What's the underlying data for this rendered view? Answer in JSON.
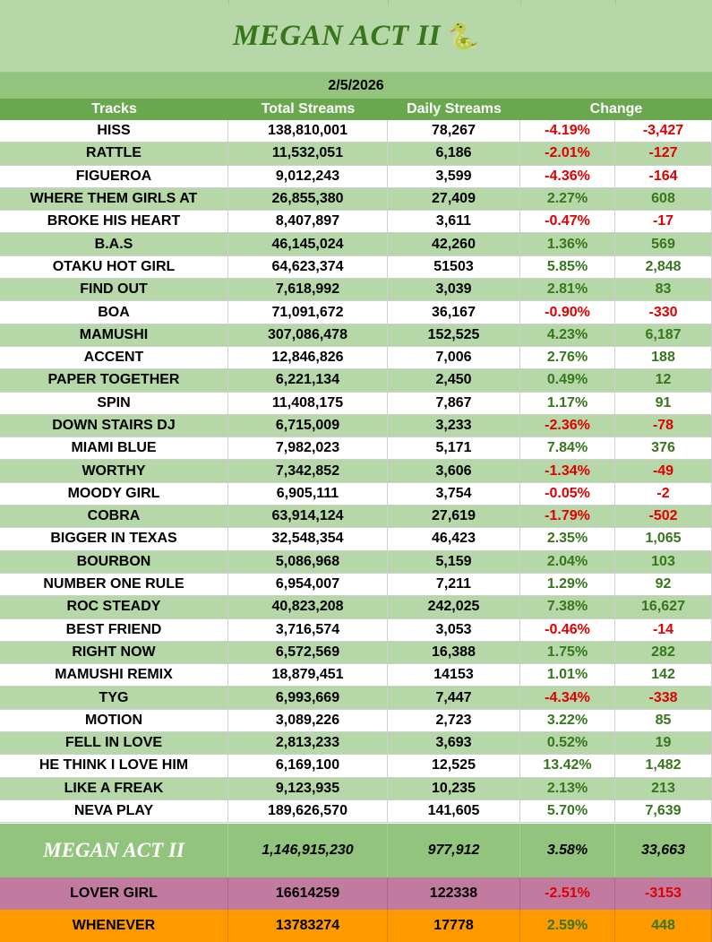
{
  "title": "MEGAN ACT II",
  "title_emoji": "🐍",
  "date": "2/5/2026",
  "headers": {
    "tracks": "Tracks",
    "total": "Total Streams",
    "daily": "Daily Streams",
    "change": "Change"
  },
  "tracks": [
    {
      "name": "HISS",
      "total": "138,810,001",
      "daily": "78,267",
      "pct": "-4.19%",
      "diff": "-3,427"
    },
    {
      "name": "RATTLE",
      "total": "11,532,051",
      "daily": "6,186",
      "pct": "-2.01%",
      "diff": "-127"
    },
    {
      "name": "FIGUEROA",
      "total": "9,012,243",
      "daily": "3,599",
      "pct": "-4.36%",
      "diff": "-164"
    },
    {
      "name": "WHERE THEM GIRLS AT",
      "total": "26,855,380",
      "daily": "27,409",
      "pct": "2.27%",
      "diff": "608"
    },
    {
      "name": "BROKE HIS HEART",
      "total": "8,407,897",
      "daily": "3,611",
      "pct": "-0.47%",
      "diff": "-17"
    },
    {
      "name": "B.A.S",
      "total": "46,145,024",
      "daily": "42,260",
      "pct": "1.36%",
      "diff": "569"
    },
    {
      "name": "OTAKU HOT GIRL",
      "total": "64,623,374",
      "daily": "51503",
      "pct": "5.85%",
      "diff": "2,848"
    },
    {
      "name": "FIND OUT",
      "total": "7,618,992",
      "daily": "3,039",
      "pct": "2.81%",
      "diff": "83"
    },
    {
      "name": "BOA",
      "total": "71,091,672",
      "daily": "36,167",
      "pct": "-0.90%",
      "diff": "-330"
    },
    {
      "name": "MAMUSHI",
      "total": "307,086,478",
      "daily": "152,525",
      "pct": "4.23%",
      "diff": "6,187"
    },
    {
      "name": "ACCENT",
      "total": "12,846,826",
      "daily": "7,006",
      "pct": "2.76%",
      "diff": "188"
    },
    {
      "name": "PAPER TOGETHER",
      "total": "6,221,134",
      "daily": "2,450",
      "pct": "0.49%",
      "diff": "12"
    },
    {
      "name": "SPIN",
      "total": "11,408,175",
      "daily": "7,867",
      "pct": "1.17%",
      "diff": "91"
    },
    {
      "name": "DOWN STAIRS DJ",
      "total": "6,715,009",
      "daily": "3,233",
      "pct": "-2.36%",
      "diff": "-78"
    },
    {
      "name": "MIAMI BLUE",
      "total": "7,982,023",
      "daily": "5,171",
      "pct": "7.84%",
      "diff": "376"
    },
    {
      "name": "WORTHY",
      "total": "7,342,852",
      "daily": "3,606",
      "pct": "-1.34%",
      "diff": "-49"
    },
    {
      "name": "MOODY GIRL",
      "total": "6,905,111",
      "daily": "3,754",
      "pct": "-0.05%",
      "diff": "-2"
    },
    {
      "name": "COBRA",
      "total": "63,914,124",
      "daily": "27,619",
      "pct": "-1.79%",
      "diff": "-502"
    },
    {
      "name": "BIGGER IN TEXAS",
      "total": "32,548,354",
      "daily": "46,423",
      "pct": "2.35%",
      "diff": "1,065"
    },
    {
      "name": "BOURBON",
      "total": "5,086,968",
      "daily": "5,159",
      "pct": "2.04%",
      "diff": "103"
    },
    {
      "name": "NUMBER ONE RULE",
      "total": "6,954,007",
      "daily": "7,211",
      "pct": "1.29%",
      "diff": "92"
    },
    {
      "name": "ROC STEADY",
      "total": "40,823,208",
      "daily": "242,025",
      "pct": "7.38%",
      "diff": "16,627"
    },
    {
      "name": "BEST FRIEND",
      "total": "3,716,574",
      "daily": "3,053",
      "pct": "-0.46%",
      "diff": "-14"
    },
    {
      "name": "RIGHT NOW",
      "total": "6,572,569",
      "daily": "16,388",
      "pct": "1.75%",
      "diff": "282"
    },
    {
      "name": "MAMUSHI REMIX",
      "total": "18,879,451",
      "daily": "14153",
      "pct": "1.01%",
      "diff": "142"
    },
    {
      "name": "TYG",
      "total": "6,993,669",
      "daily": "7,447",
      "pct": "-4.34%",
      "diff": "-338"
    },
    {
      "name": "MOTION",
      "total": "3,089,226",
      "daily": "2,723",
      "pct": "3.22%",
      "diff": "85"
    },
    {
      "name": "FELL IN LOVE",
      "total": "2,813,233",
      "daily": "3,693",
      "pct": "0.52%",
      "diff": "19"
    },
    {
      "name": "HE THINK I LOVE HIM",
      "total": "6,169,100",
      "daily": "12,525",
      "pct": "13.42%",
      "diff": "1,482"
    },
    {
      "name": "LIKE A FREAK",
      "total": "9,123,935",
      "daily": "10,235",
      "pct": "2.13%",
      "diff": "213"
    },
    {
      "name": "NEVA PLAY",
      "total": "189,626,570",
      "daily": "141,605",
      "pct": "5.70%",
      "diff": "7,639"
    }
  ],
  "total": {
    "name": "MEGAN ACT II",
    "total": "1,146,915,230",
    "daily": "977,912",
    "pct": "3.58%",
    "diff": "33,663"
  },
  "extras": [
    {
      "name": "LOVER GIRL",
      "total": "16614259",
      "daily": "122338",
      "pct": "-2.51%",
      "diff": "-3153"
    },
    {
      "name": "WHENEVER",
      "total": "13783274",
      "daily": "17778",
      "pct": "2.59%",
      "diff": "448"
    }
  ],
  "colors": {
    "title_bg": "#b6d7a8",
    "header_bg": "#6aa84f",
    "date_bg": "#93c47d",
    "alt_row": "#b6d7a8",
    "negative": "#e00000",
    "positive": "#38761d",
    "lover_girl_bg": "#c27ba0",
    "whenever_bg": "#ff9900"
  }
}
